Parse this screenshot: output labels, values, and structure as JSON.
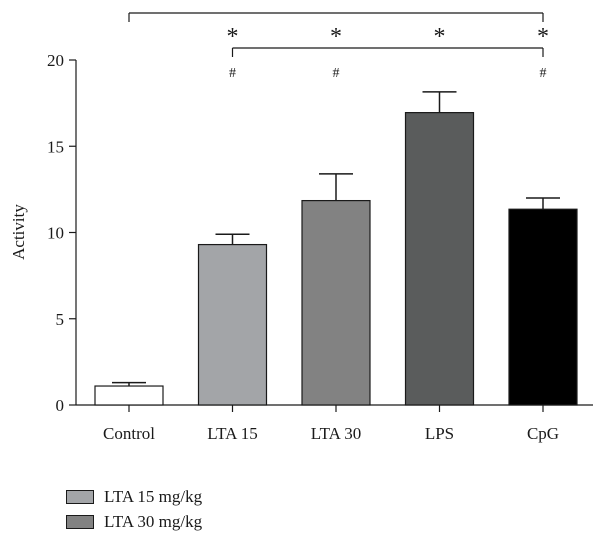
{
  "chart_data": {
    "type": "bar",
    "categories": [
      "Control",
      "LTA 15",
      "LTA 30",
      "LPS",
      "CpG"
    ],
    "values": [
      1.1,
      9.3,
      11.85,
      16.95,
      11.35
    ],
    "errors": [
      0.2,
      0.6,
      1.55,
      1.2,
      0.65
    ],
    "bar_colors": [
      "#ffffff",
      "#a3a5a8",
      "#828282",
      "#5a5c5c",
      "#000000"
    ],
    "title": "",
    "xlabel": "",
    "ylabel": "Activity",
    "ylim": [
      0,
      20
    ],
    "yticks": [
      0,
      5,
      10,
      15,
      20
    ],
    "grid": false,
    "significance": {
      "star_symbol": "*",
      "hash_symbol": "#",
      "top_bracket": {
        "from": "Control",
        "to": "CpG",
        "stars_over": [
          "LTA 15",
          "LTA 30",
          "LPS",
          "CpG"
        ]
      },
      "second_bracket": {
        "from": "LTA 15",
        "to": "CpG",
        "hashes_over": [
          "LTA 15",
          "LTA 30",
          "CpG"
        ]
      }
    },
    "legend": {
      "placement": "bottom-left",
      "entries": [
        {
          "label": "LTA 15 mg/kg",
          "color": "#a3a5a8"
        },
        {
          "label": "LTA 30 mg/kg",
          "color": "#828282"
        }
      ]
    }
  }
}
